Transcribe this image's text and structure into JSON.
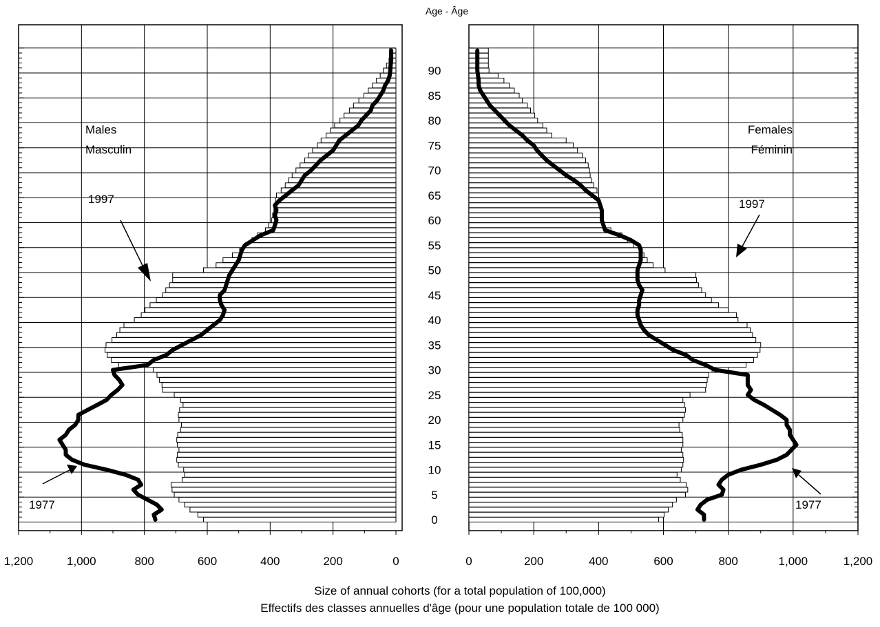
{
  "chart_data": {
    "type": "bar",
    "title": "Age - Âge",
    "xlabel": "Size of annual cohorts (for a total population of 100,000)",
    "xlabel_fr": "Effectifs des classes annuelles d'âge (pour une population totale de 100 000)",
    "xlim": [
      0,
      1200
    ],
    "ylim": [
      0,
      95
    ],
    "x_ticks": [
      0,
      200,
      400,
      600,
      800,
      1000,
      1200
    ],
    "x_tick_labels": [
      "0",
      "200",
      "400",
      "600",
      "800",
      "1,000",
      "1,200"
    ],
    "y_ticks": [
      0,
      5,
      10,
      15,
      20,
      25,
      30,
      35,
      40,
      45,
      50,
      55,
      60,
      65,
      70,
      75,
      80,
      85,
      90
    ],
    "y_tick_labels": [
      "0",
      "5",
      "10",
      "15",
      "20",
      "25",
      "30",
      "35",
      "40",
      "45",
      "50",
      "55",
      "60",
      "65",
      "70",
      "75",
      "80",
      "85",
      "90"
    ],
    "grid": true,
    "males": {
      "label": "Males",
      "label_fr": "Masculin",
      "series": [
        {
          "name": "1997",
          "type": "bar",
          "ages": [
            0,
            1,
            2,
            3,
            4,
            5,
            6,
            7,
            8,
            9,
            10,
            11,
            12,
            13,
            14,
            15,
            16,
            17,
            18,
            19,
            20,
            21,
            22,
            23,
            24,
            25,
            26,
            27,
            28,
            29,
            30,
            31,
            32,
            33,
            34,
            35,
            36,
            37,
            38,
            39,
            40,
            41,
            42,
            43,
            44,
            45,
            46,
            47,
            48,
            49,
            50,
            51,
            52,
            53,
            54,
            55,
            56,
            57,
            58,
            59,
            60,
            61,
            62,
            63,
            64,
            65,
            66,
            67,
            68,
            69,
            70,
            71,
            72,
            73,
            74,
            75,
            76,
            77,
            78,
            79,
            80,
            81,
            82,
            83,
            84,
            85,
            86,
            87,
            88,
            89,
            90,
            91,
            92,
            93,
            94
          ],
          "values": [
            612,
            630,
            655,
            672,
            690,
            705,
            712,
            715,
            680,
            672,
            675,
            692,
            697,
            695,
            690,
            695,
            697,
            694,
            685,
            682,
            690,
            692,
            688,
            677,
            685,
            705,
            742,
            744,
            752,
            760,
            772,
            882,
            905,
            918,
            925,
            922,
            903,
            888,
            878,
            865,
            832,
            810,
            798,
            782,
            762,
            742,
            732,
            720,
            710,
            710,
            612,
            572,
            550,
            520,
            497,
            478,
            458,
            440,
            415,
            405,
            395,
            392,
            388,
            385,
            383,
            380,
            365,
            352,
            342,
            330,
            318,
            305,
            290,
            278,
            265,
            250,
            238,
            222,
            208,
            195,
            178,
            165,
            148,
            135,
            118,
            102,
            88,
            75,
            62,
            50,
            40,
            30,
            22,
            20,
            20
          ]
        },
        {
          "name": "1977",
          "type": "line",
          "ages": [
            0,
            1,
            2,
            3,
            4,
            5,
            6,
            7,
            8,
            9,
            10,
            11,
            12,
            13,
            14,
            15,
            16,
            17,
            18,
            19,
            20,
            21,
            22,
            23,
            24,
            25,
            26,
            27,
            28,
            29,
            30,
            31,
            32,
            33,
            34,
            35,
            36,
            37,
            38,
            39,
            40,
            41,
            42,
            43,
            44,
            45,
            46,
            47,
            48,
            49,
            50,
            51,
            52,
            53,
            54,
            55,
            56,
            57,
            58,
            59,
            60,
            61,
            62,
            63,
            64,
            65,
            66,
            67,
            68,
            69,
            70,
            71,
            72,
            73,
            74,
            75,
            76,
            77,
            78,
            79,
            80,
            81,
            82,
            83,
            84,
            85,
            86,
            87,
            88,
            89,
            90,
            91,
            92,
            93,
            94
          ],
          "values": [
            765,
            770,
            745,
            760,
            790,
            820,
            835,
            810,
            820,
            860,
            920,
            990,
            1030,
            1050,
            1050,
            1060,
            1070,
            1050,
            1040,
            1020,
            1010,
            1010,
            980,
            950,
            920,
            905,
            885,
            870,
            880,
            895,
            900,
            790,
            770,
            730,
            710,
            680,
            650,
            620,
            600,
            580,
            560,
            550,
            545,
            555,
            560,
            560,
            545,
            540,
            535,
            530,
            520,
            510,
            500,
            495,
            490,
            480,
            455,
            430,
            390,
            385,
            380,
            385,
            380,
            385,
            370,
            350,
            330,
            310,
            300,
            290,
            270,
            255,
            240,
            220,
            200,
            190,
            180,
            160,
            140,
            120,
            110,
            95,
            80,
            75,
            60,
            50,
            40,
            35,
            25,
            20,
            18,
            17,
            15,
            15,
            15
          ]
        }
      ]
    },
    "females": {
      "label": "Females",
      "label_fr": "Féminin",
      "series": [
        {
          "name": "1997",
          "type": "bar",
          "ages": [
            0,
            1,
            2,
            3,
            4,
            5,
            6,
            7,
            8,
            9,
            10,
            11,
            12,
            13,
            14,
            15,
            16,
            17,
            18,
            19,
            20,
            21,
            22,
            23,
            24,
            25,
            26,
            27,
            28,
            29,
            30,
            31,
            32,
            33,
            34,
            35,
            36,
            37,
            38,
            39,
            40,
            41,
            42,
            43,
            44,
            45,
            46,
            47,
            48,
            49,
            50,
            51,
            52,
            53,
            54,
            55,
            56,
            57,
            58,
            59,
            60,
            61,
            62,
            63,
            64,
            65,
            66,
            67,
            68,
            69,
            70,
            71,
            72,
            73,
            74,
            75,
            76,
            77,
            78,
            79,
            80,
            81,
            82,
            83,
            84,
            85,
            86,
            87,
            88,
            89,
            90,
            91,
            92,
            93,
            94
          ],
          "values": [
            585,
            602,
            615,
            628,
            640,
            668,
            675,
            670,
            652,
            642,
            655,
            660,
            662,
            660,
            655,
            660,
            660,
            658,
            650,
            648,
            660,
            665,
            668,
            665,
            660,
            682,
            730,
            732,
            735,
            740,
            750,
            855,
            878,
            890,
            898,
            900,
            885,
            875,
            868,
            858,
            830,
            825,
            800,
            770,
            748,
            730,
            718,
            708,
            702,
            700,
            605,
            568,
            550,
            540,
            535,
            508,
            490,
            472,
            438,
            418,
            410,
            405,
            405,
            405,
            402,
            400,
            395,
            385,
            378,
            374,
            372,
            368,
            360,
            350,
            335,
            322,
            300,
            255,
            240,
            228,
            212,
            203,
            190,
            180,
            165,
            155,
            140,
            125,
            108,
            90,
            62,
            60,
            60,
            60,
            60
          ]
        },
        {
          "name": "1977",
          "type": "line",
          "ages": [
            0,
            1,
            2,
            3,
            4,
            5,
            6,
            7,
            8,
            9,
            10,
            11,
            12,
            13,
            14,
            15,
            16,
            17,
            18,
            19,
            20,
            21,
            22,
            23,
            24,
            25,
            26,
            27,
            28,
            29,
            30,
            31,
            32,
            33,
            34,
            35,
            36,
            37,
            38,
            39,
            40,
            41,
            42,
            43,
            44,
            45,
            46,
            47,
            48,
            49,
            50,
            51,
            52,
            53,
            54,
            55,
            56,
            57,
            58,
            59,
            60,
            61,
            62,
            63,
            64,
            65,
            66,
            67,
            68,
            69,
            70,
            71,
            72,
            73,
            74,
            75,
            76,
            77,
            78,
            79,
            80,
            81,
            82,
            83,
            84,
            85,
            86,
            87,
            88,
            89,
            90,
            91,
            92,
            93,
            94
          ],
          "values": [
            725,
            725,
            705,
            715,
            735,
            780,
            785,
            770,
            780,
            800,
            840,
            900,
            950,
            980,
            995,
            1010,
            1000,
            990,
            990,
            980,
            980,
            960,
            935,
            910,
            880,
            860,
            870,
            860,
            860,
            860,
            760,
            730,
            690,
            670,
            630,
            605,
            580,
            555,
            540,
            530,
            525,
            520,
            520,
            525,
            525,
            530,
            535,
            525,
            520,
            520,
            520,
            525,
            530,
            530,
            530,
            525,
            500,
            465,
            420,
            415,
            410,
            410,
            410,
            405,
            400,
            380,
            360,
            345,
            325,
            300,
            280,
            260,
            240,
            225,
            210,
            200,
            180,
            165,
            145,
            125,
            110,
            95,
            80,
            65,
            55,
            45,
            35,
            30,
            30,
            28,
            26,
            26,
            26,
            26,
            26
          ]
        }
      ]
    },
    "annotations": [
      {
        "side": "males",
        "text": "1997",
        "points_to": "1997 bars"
      },
      {
        "side": "males",
        "text": "1977",
        "points_to": "1977 line"
      },
      {
        "side": "females",
        "text": "1997",
        "points_to": "1997 bars"
      },
      {
        "side": "females",
        "text": "1977",
        "points_to": "1977 line"
      }
    ],
    "colors": {
      "bar_fill": "#ffffff",
      "bar_stroke": "#000000",
      "line": "#000000",
      "grid": "#000000"
    }
  }
}
